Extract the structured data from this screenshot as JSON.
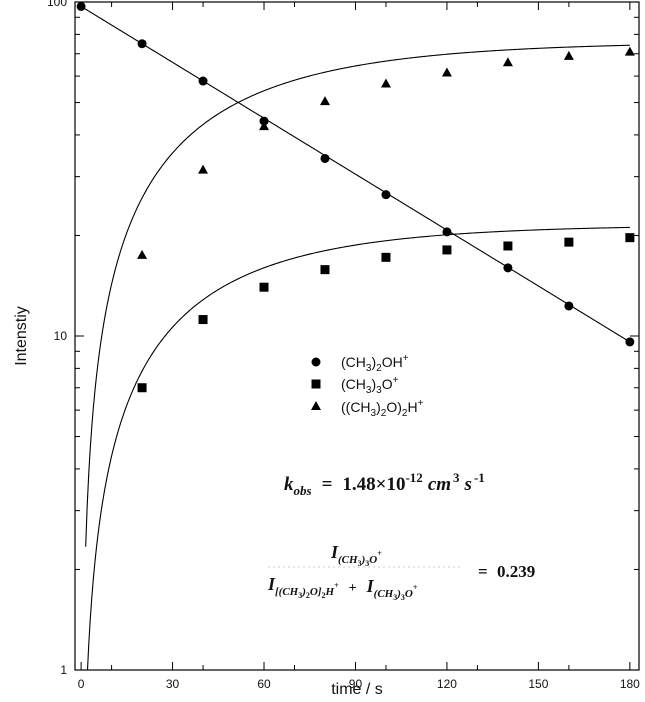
{
  "chart_data": {
    "type": "scatter",
    "title": "",
    "xlabel": "time / s",
    "ylabel": "Intenstiy",
    "xlim": [
      -2,
      183
    ],
    "ylim": [
      1,
      100
    ],
    "y_scale": "log",
    "x_ticks": [
      "0",
      "30",
      "60",
      "90",
      "120",
      "150",
      "180"
    ],
    "y_ticks": [
      "1",
      "10",
      "100"
    ],
    "grid": false,
    "legend_position": "center",
    "series": [
      {
        "name": "(CH3)2OH+",
        "marker": "circle",
        "fit": "exponential decay",
        "x": [
          0,
          20,
          40,
          60,
          80,
          100,
          120,
          140,
          160,
          180
        ],
        "y": [
          97,
          75,
          58,
          44,
          34,
          26.5,
          20.5,
          16,
          12.3,
          9.6
        ]
      },
      {
        "name": "(CH3)3O+",
        "marker": "square",
        "fit": "saturating growth",
        "x": [
          20,
          40,
          60,
          80,
          100,
          120,
          140,
          160,
          180
        ],
        "y": [
          7,
          11.2,
          14,
          15.8,
          17.2,
          18.1,
          18.6,
          19.1,
          19.7
        ]
      },
      {
        "name": "((CH3)2O)2H+",
        "marker": "triangle",
        "fit": "saturating growth",
        "x": [
          20,
          40,
          60,
          80,
          100,
          120,
          140,
          160,
          180
        ],
        "y": [
          17.5,
          31.5,
          42.5,
          50.5,
          57,
          61.5,
          66,
          69,
          71
        ]
      }
    ]
  },
  "legend": [
    {
      "marker": "circle",
      "base": "(CH",
      "sub1": "3",
      "mid": ")",
      "sub2": "2",
      "rest": "OH",
      "sup": "+"
    },
    {
      "marker": "square",
      "base": "(CH",
      "sub1": "3",
      "mid": ")",
      "sub2": "3",
      "rest": "O",
      "sup": "+"
    },
    {
      "marker": "triangle",
      "base": "((CH",
      "sub1": "3",
      "mid": ")",
      "sub2": "2",
      "rest": "O)",
      "sub3": "2",
      "rest2": "H",
      "sup": "+"
    }
  ],
  "annotations": {
    "kobs": {
      "symbol": "k",
      "symbol_sub": "obs",
      "eq": "=",
      "value": "1.48×10",
      "exp": "-12",
      "unit_cm": "cm",
      "unit_cm_exp": "3",
      "unit_s": "s",
      "unit_s_exp": "-1"
    },
    "ratio": {
      "numerator": "I(CH3)3O+",
      "denominator": "I[(CH3)2O]2H+ + I(CH3)3O+",
      "eq": "=",
      "value": "0.239"
    }
  }
}
